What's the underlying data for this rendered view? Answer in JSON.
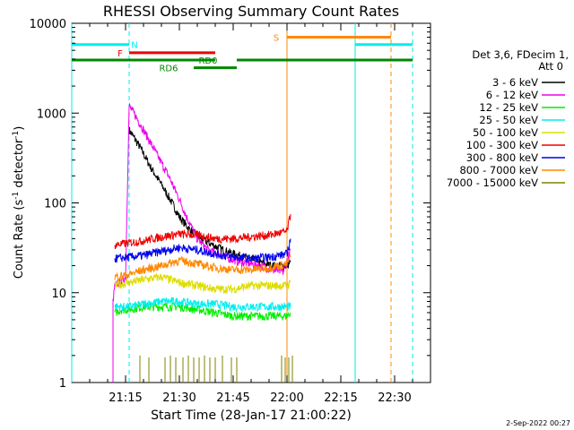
{
  "chart_data": {
    "type": "line",
    "title": "RHESSI Observing Summary Count Rates",
    "xlabel": "Start Time (28-Jan-17 21:00:22)",
    "ylabel_main": "Count Rate (s",
    "ylabel_sup1": "-1",
    "ylabel_mid": " detector",
    "ylabel_sup2": "-1",
    "ylabel_end": ")",
    "y_scale": "log",
    "ylim": [
      1,
      10000
    ],
    "xlim_minutes": [
      0,
      100
    ],
    "x_ticks": [
      {
        "label": "21:15",
        "min": 15
      },
      {
        "label": "21:30",
        "min": 30
      },
      {
        "label": "21:45",
        "min": 45
      },
      {
        "label": "22:00",
        "min": 60
      },
      {
        "label": "22:15",
        "min": 75
      },
      {
        "label": "22:30",
        "min": 90
      }
    ],
    "y_ticks": [
      {
        "label": "1",
        "value": 1
      },
      {
        "label": "10",
        "value": 10
      },
      {
        "label": "100",
        "value": 100
      },
      {
        "label": "1000",
        "value": 1000
      },
      {
        "label": "10000",
        "value": 10000
      }
    ],
    "legend_header": [
      "Det 3,6, FDecim 1,",
      "Att 0"
    ],
    "legend_placement": "right",
    "footer_date": "2-Sep-2022 00:27",
    "series": [
      {
        "name": "3 - 6 keV",
        "color": "#000000",
        "points": [
          [
            16,
            650
          ],
          [
            19,
            420
          ],
          [
            22,
            250
          ],
          [
            25,
            160
          ],
          [
            28,
            100
          ],
          [
            30,
            70
          ],
          [
            33,
            50
          ],
          [
            36,
            40
          ],
          [
            40,
            33
          ],
          [
            44,
            28
          ],
          [
            48,
            25
          ],
          [
            52,
            22
          ],
          [
            56,
            20
          ],
          [
            60,
            20
          ],
          [
            61,
            22
          ]
        ]
      },
      {
        "name": "6 - 12 keV",
        "color": "#ee00ee",
        "points": [
          [
            11.5,
            1
          ],
          [
            11.5,
            8
          ],
          [
            12,
            12
          ],
          [
            13.5,
            13
          ],
          [
            15,
            15
          ],
          [
            16,
            1200
          ],
          [
            18,
            900
          ],
          [
            21,
            550
          ],
          [
            24,
            330
          ],
          [
            27,
            200
          ],
          [
            30,
            110
          ],
          [
            32,
            70
          ],
          [
            35,
            40
          ],
          [
            38,
            30
          ],
          [
            41,
            27
          ],
          [
            44,
            24
          ],
          [
            47,
            22
          ],
          [
            50,
            21
          ],
          [
            53,
            20
          ],
          [
            56,
            18
          ],
          [
            59,
            17
          ],
          [
            61,
            30
          ]
        ]
      },
      {
        "name": "12 - 25 keV",
        "color": "#00ee00",
        "points": [
          [
            12,
            6
          ],
          [
            14,
            6.5
          ],
          [
            16,
            6.5
          ],
          [
            20,
            7
          ],
          [
            25,
            7
          ],
          [
            30,
            7
          ],
          [
            35,
            6.5
          ],
          [
            40,
            6
          ],
          [
            45,
            5.5
          ],
          [
            50,
            5.5
          ],
          [
            55,
            5.5
          ],
          [
            60,
            5.5
          ],
          [
            61,
            6
          ]
        ]
      },
      {
        "name": "25 - 50 keV",
        "color": "#00eeee",
        "points": [
          [
            12,
            7
          ],
          [
            16,
            7
          ],
          [
            20,
            7.5
          ],
          [
            25,
            8
          ],
          [
            30,
            8
          ],
          [
            35,
            7.5
          ],
          [
            40,
            7.5
          ],
          [
            45,
            7
          ],
          [
            50,
            7
          ],
          [
            55,
            7
          ],
          [
            60,
            7
          ],
          [
            61,
            7
          ]
        ]
      },
      {
        "name": "50 - 100 keV",
        "color": "#dddd00",
        "points": [
          [
            12,
            12
          ],
          [
            16,
            13
          ],
          [
            20,
            14
          ],
          [
            25,
            15
          ],
          [
            30,
            13
          ],
          [
            35,
            12
          ],
          [
            40,
            11
          ],
          [
            45,
            11
          ],
          [
            50,
            12
          ],
          [
            55,
            12
          ],
          [
            60,
            12
          ],
          [
            61,
            13
          ]
        ]
      },
      {
        "name": "100 - 300 keV",
        "color": "#ee0000",
        "points": [
          [
            12,
            34
          ],
          [
            16,
            36
          ],
          [
            20,
            38
          ],
          [
            25,
            42
          ],
          [
            30,
            45
          ],
          [
            35,
            44
          ],
          [
            40,
            40
          ],
          [
            45,
            40
          ],
          [
            50,
            42
          ],
          [
            55,
            44
          ],
          [
            60,
            48
          ],
          [
            61,
            75
          ]
        ]
      },
      {
        "name": "300 - 800 keV",
        "color": "#0000ee",
        "points": [
          [
            12,
            24
          ],
          [
            16,
            25
          ],
          [
            20,
            26
          ],
          [
            25,
            29
          ],
          [
            30,
            32
          ],
          [
            35,
            30
          ],
          [
            40,
            27
          ],
          [
            45,
            25
          ],
          [
            50,
            24
          ],
          [
            55,
            25
          ],
          [
            60,
            27
          ],
          [
            61,
            40
          ]
        ]
      },
      {
        "name": "800 - 7000 keV",
        "color": "#ff8800",
        "points": [
          [
            12,
            15
          ],
          [
            16,
            16
          ],
          [
            20,
            18
          ],
          [
            25,
            20
          ],
          [
            30,
            23
          ],
          [
            35,
            21
          ],
          [
            40,
            19
          ],
          [
            45,
            18
          ],
          [
            50,
            18
          ],
          [
            55,
            19
          ],
          [
            60,
            21
          ],
          [
            61,
            25
          ]
        ]
      },
      {
        "name": "7000 - 15000 keV",
        "color": "#808000",
        "points": []
      }
    ],
    "flags": [
      {
        "label": "N",
        "color": "#00eeee",
        "segments": [
          [
            0,
            16
          ],
          [
            79,
            95
          ]
        ],
        "level": 5800,
        "label_min": 17.5
      },
      {
        "label": "F",
        "color": "#ee0000",
        "segments": [
          [
            16,
            40
          ]
        ],
        "level": 4700,
        "label_min": 13.5
      },
      {
        "label": "RD0",
        "color": "#008800",
        "segments": [
          [
            0,
            40
          ],
          [
            46,
            95
          ]
        ],
        "level": 3900,
        "label_min": 38
      },
      {
        "label": "RD6",
        "color": "#008800",
        "segments": [
          [
            34,
            46
          ]
        ],
        "level": 3200,
        "label_min": 27
      },
      {
        "label": "S",
        "color": "#ff8800",
        "segments": [
          [
            60,
            89
          ]
        ],
        "level": 7000,
        "label_min": 57
      }
    ],
    "vlines": [
      {
        "min": 0,
        "color": "#00eeee",
        "style": "solid"
      },
      {
        "min": 16,
        "color": "#00eeee",
        "style": "dashed"
      },
      {
        "min": 60,
        "color": "#ff8800",
        "style": "solid"
      },
      {
        "min": 79,
        "color": "#00eeee",
        "style": "solid"
      },
      {
        "min": 89,
        "color": "#ff8800",
        "style": "dashed"
      },
      {
        "min": 95,
        "color": "#00eeee",
        "style": "dashed"
      }
    ]
  }
}
